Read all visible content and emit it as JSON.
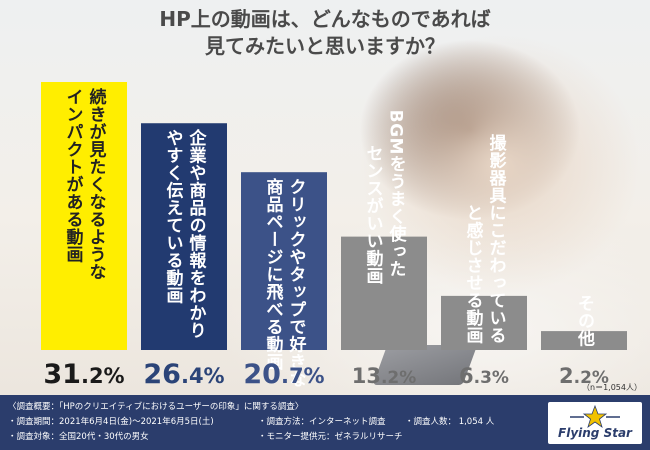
{
  "title": {
    "line1": "HP上の動画は、どんなものであれば",
    "line2": "見てみたいと思いますか？"
  },
  "chart_data": {
    "type": "bar",
    "categories": [
      [
        "続きが見たくなるような",
        "インパクトがある動画"
      ],
      [
        "企業や商品の情報をわかり",
        "やすく伝えている動画"
      ],
      [
        "クリックやタップで好きな",
        "商品ページに飛べる動画"
      ],
      [
        "BGMをうまく使った",
        "センスがいい動画"
      ],
      [
        "撮影器具にこだわっている",
        "と感じさせる動画"
      ],
      [
        "その他"
      ]
    ],
    "values": [
      31.2,
      26.4,
      20.7,
      13.2,
      6.3,
      2.2
    ],
    "value_labels": [
      {
        "int": "31",
        "dec": ".2%"
      },
      {
        "int": "26",
        "dec": ".4%"
      },
      {
        "int": "20",
        "dec": ".7%"
      },
      {
        "int": "13",
        "dec": ".2%"
      },
      {
        "int": "6",
        "dec": ".3%"
      },
      {
        "int": "2",
        "dec": ".2%"
      }
    ],
    "ylim": [
      0,
      31.2
    ],
    "sample_note": "（n＝1,054人）",
    "colors": {
      "bars": [
        "#ffee00",
        "#223a70",
        "#3c5288",
        "#8c8c8c",
        "#8c8c8c",
        "#8c8c8c"
      ],
      "text": [
        "#222222",
        "#ffffff",
        "#ffffff",
        "#ffffff",
        "#ffffff",
        "#ffffff"
      ],
      "values": [
        "#1a1a1a",
        "#2b4478",
        "#3c5288",
        "#6e6e6e",
        "#6e6e6e",
        "#6e6e6e"
      ]
    }
  },
  "footer": {
    "line1": "〈調査概要：「HPのクリエイティブにおけるユーザーの印象」に関する調査〉",
    "period": "・調査期間：2021年6月4日(金)〜2021年6月5日(土)",
    "method": "・調査方法：インターネット調査",
    "count": "・調査人数： 1,054 人",
    "target": "・調査対象：全国20代・30代の男女",
    "provider": "・モニター提供元：ゼネラルリサーチ",
    "logo": "Flying Star"
  }
}
